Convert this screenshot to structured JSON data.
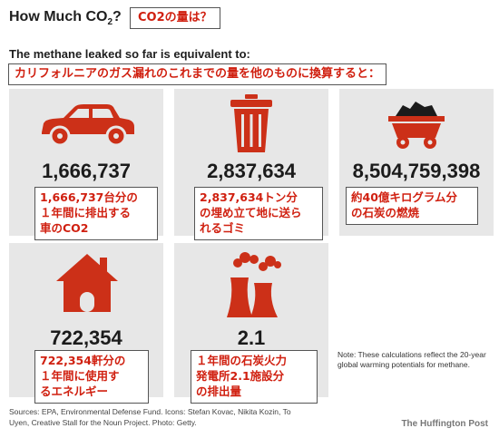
{
  "header": {
    "title_main": "How Much CO",
    "title_sub": "2",
    "title_end": "?",
    "title_jp": "CO2の量は？",
    "subtitle": "The methane leaked so far is equivalent to:",
    "subtitle_jp": "カリフォルニアのガス漏れのこれまでの量を他のものに換算すると："
  },
  "chart_data": {
    "type": "table",
    "items": [
      {
        "icon": "car-icon",
        "value": "1,666,737",
        "caption_jp": [
          "1,666,737台分の",
          "１年間に排出する",
          "車のCO2"
        ]
      },
      {
        "icon": "trash-can-icon",
        "value": "2,837,634",
        "caption_jp": [
          "2,837,634トン分",
          "の埋め立て地に送ら",
          "れるゴミ"
        ]
      },
      {
        "icon": "coal-cart-icon",
        "value": "8,504,759,398",
        "caption_jp": [
          "約40億キログラム分",
          "の石炭の燃焼"
        ]
      },
      {
        "icon": "house-icon",
        "value": "722,354",
        "caption_jp": [
          "722,354軒分の",
          "１年間に使用す",
          "るエネルギー"
        ]
      },
      {
        "icon": "power-plant-icon",
        "value": "2.1",
        "caption_jp": [
          "１年間の石炭火力",
          "発電所2.1施設分",
          "の排出量"
        ]
      }
    ]
  },
  "note": "Note: These calculations reflect the 20-year global warming potentials for methane.",
  "sources": "Sources: EPA, Environmental Defense Fund. Icons: Stefan Kovac, Nikita Kozin, To Uyen, Creative Stall for the Noun Project. Photo: Getty.",
  "credit": "The Huffington Post",
  "colors": {
    "accent": "#cc3018",
    "tile": "#e7e7e7",
    "jp_text": "#d02010"
  }
}
